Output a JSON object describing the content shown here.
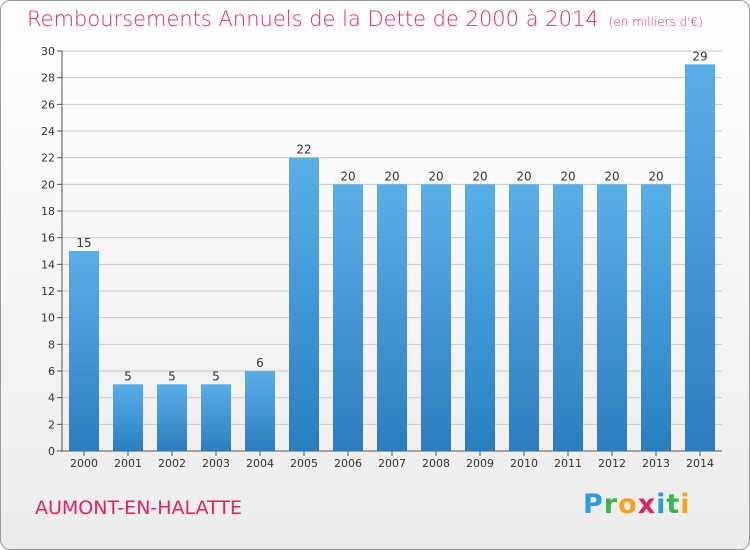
{
  "header": {
    "title": "Remboursements Annuels de la Dette de 2000 à 2014",
    "subtitle": "(en milliers d'€)"
  },
  "footer": {
    "town": "AUMONT-EN-HALATTE",
    "logo": "Proxiti"
  },
  "colors": {
    "bar_top": "#5aaee8",
    "bar_bottom": "#2a7ebf",
    "title": "#e0245f",
    "grid": "#c8c8c8"
  },
  "chart_data": {
    "type": "bar",
    "title": "Remboursements Annuels de la Dette de 2000 à 2014",
    "subtitle": "(en milliers d'€)",
    "categories": [
      "2000",
      "2001",
      "2002",
      "2003",
      "2004",
      "2005",
      "2006",
      "2007",
      "2008",
      "2009",
      "2010",
      "2011",
      "2012",
      "2013",
      "2014"
    ],
    "values": [
      15,
      5,
      5,
      5,
      6,
      22,
      20,
      20,
      20,
      20,
      20,
      20,
      20,
      20,
      29
    ],
    "data_labels": [
      "15",
      "5",
      "5",
      "5",
      "6",
      "22",
      "20",
      "20",
      "20",
      "20",
      "20",
      "20",
      "20",
      "20",
      "29"
    ],
    "ylim": [
      0,
      30
    ],
    "yticks": [
      0,
      2,
      4,
      6,
      8,
      10,
      12,
      14,
      16,
      18,
      20,
      22,
      24,
      26,
      28,
      30
    ],
    "grid": true,
    "xlabel": "",
    "ylabel": ""
  }
}
